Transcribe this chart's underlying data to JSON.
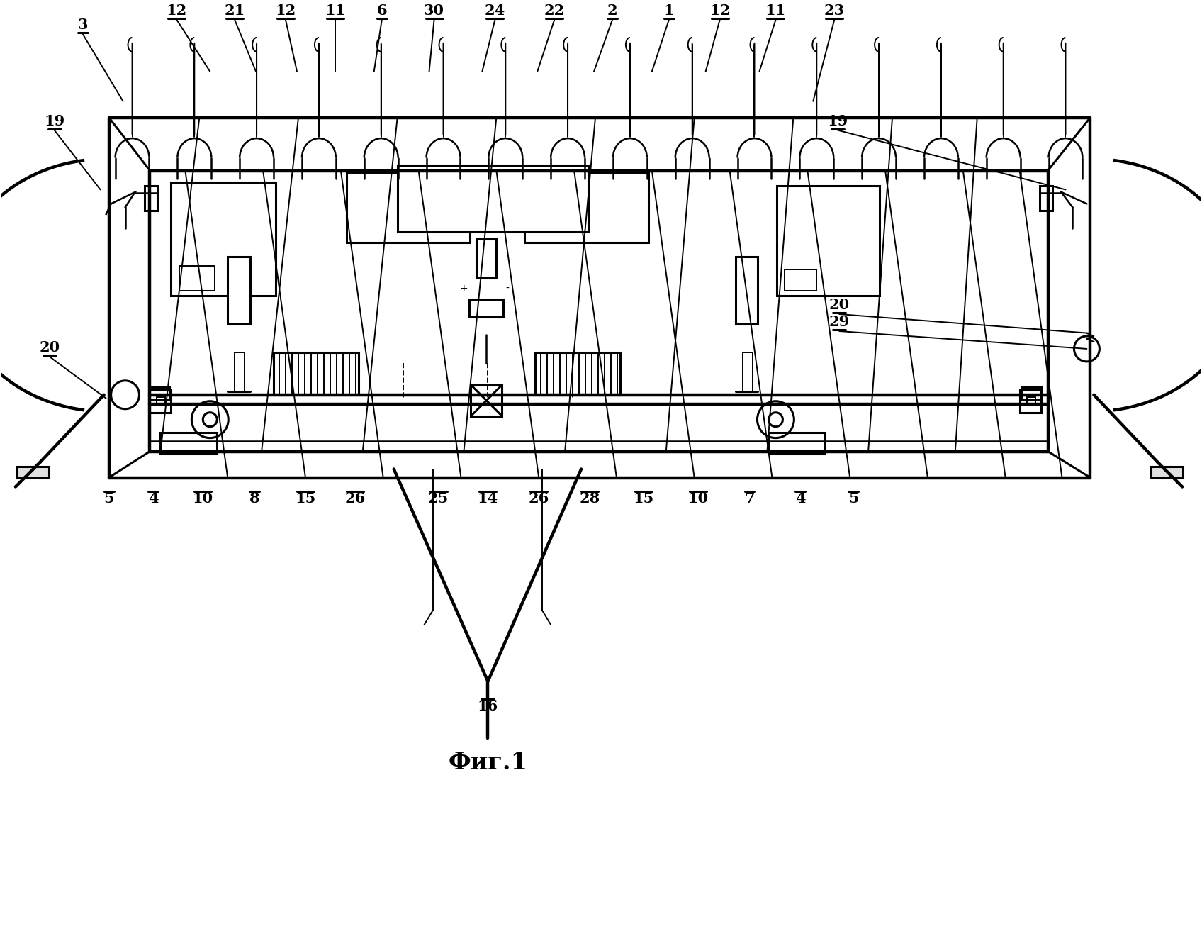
{
  "background_color": "#ffffff",
  "line_color": "#000000",
  "fig_label": "Фиг.1",
  "top_labels": [
    [
      "3",
      115,
      42
    ],
    [
      "12",
      248,
      22
    ],
    [
      "21",
      328,
      22
    ],
    [
      "12",
      400,
      22
    ],
    [
      "11",
      470,
      22
    ],
    [
      "6",
      538,
      22
    ],
    [
      "30",
      612,
      22
    ],
    [
      "24",
      698,
      22
    ],
    [
      "22",
      782,
      22
    ],
    [
      "2",
      864,
      22
    ],
    [
      "1",
      944,
      22
    ],
    [
      "12",
      1016,
      22
    ],
    [
      "11",
      1095,
      22
    ],
    [
      "23",
      1178,
      22
    ]
  ],
  "bottom_labels": [
    [
      "5",
      152,
      692
    ],
    [
      "4",
      215,
      692
    ],
    [
      "10",
      285,
      692
    ],
    [
      "8",
      358,
      692
    ],
    [
      "15",
      430,
      692
    ],
    [
      "26",
      500,
      692
    ],
    [
      "25",
      618,
      692
    ],
    [
      "14",
      688,
      692
    ],
    [
      "26",
      760,
      692
    ],
    [
      "28",
      832,
      692
    ],
    [
      "15",
      908,
      692
    ],
    [
      "10",
      985,
      692
    ],
    [
      "7",
      1058,
      692
    ],
    [
      "4",
      1130,
      692
    ],
    [
      "5",
      1205,
      692
    ]
  ]
}
